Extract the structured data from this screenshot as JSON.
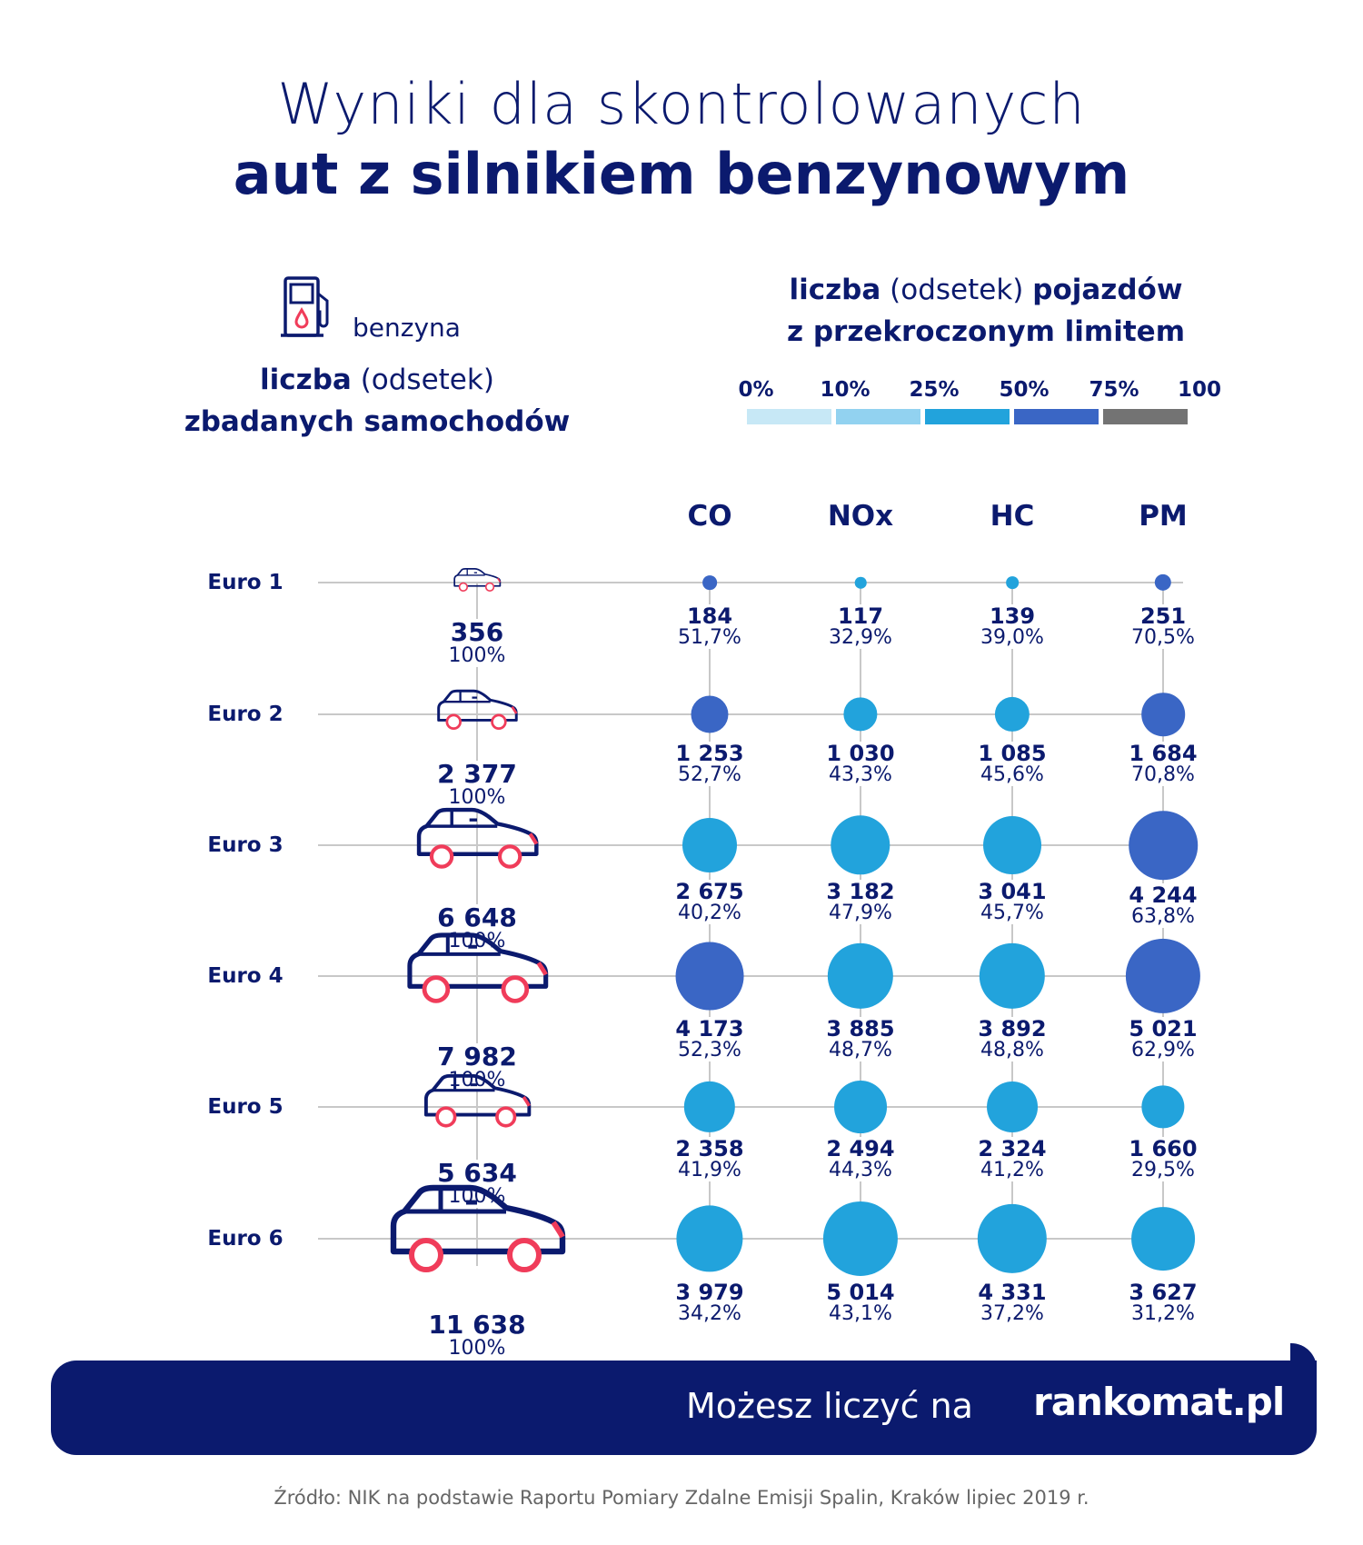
{
  "title": {
    "line1": "Wyniki dla skontrolowanych",
    "line2": "aut z silnikiem benzynowym"
  },
  "fuel": {
    "icon": "fuel-pump-icon",
    "label": "benzyna"
  },
  "left_header": {
    "bold1": "liczba",
    "light": "(odsetek)",
    "bold2": "zbadanych samochodów"
  },
  "right_header": {
    "bold1": "liczba",
    "light": "(odsetek)",
    "bold2": "pojazdów",
    "line2": "z przekroczonym limitem"
  },
  "legend": {
    "labels": [
      "0%",
      "10%",
      "25%",
      "50%",
      "75%",
      "100"
    ],
    "colors": [
      "#c7e8f6",
      "#92d2f0",
      "#22a3dc",
      "#3a66c5",
      "#737373"
    ],
    "thresholds": [
      0,
      10,
      25,
      50,
      75,
      100
    ]
  },
  "chart_data": {
    "type": "bubble-table",
    "title": "Wyniki dla skontrolowanych aut z silnikiem benzynowym",
    "columns": [
      "CO",
      "NOx",
      "HC",
      "PM"
    ],
    "rows": [
      {
        "label": "Euro 1",
        "total": "356",
        "total_pct": "100%",
        "cells": [
          {
            "count": "184",
            "pct": "51,7%",
            "value": 51.7,
            "n": 184
          },
          {
            "count": "117",
            "pct": "32,9%",
            "value": 32.9,
            "n": 117
          },
          {
            "count": "139",
            "pct": "39,0%",
            "value": 39.0,
            "n": 139
          },
          {
            "count": "251",
            "pct": "70,5%",
            "value": 70.5,
            "n": 251
          }
        ]
      },
      {
        "label": "Euro 2",
        "total": "2 377",
        "total_pct": "100%",
        "cells": [
          {
            "count": "1 253",
            "pct": "52,7%",
            "value": 52.7,
            "n": 1253
          },
          {
            "count": "1 030",
            "pct": "43,3%",
            "value": 43.3,
            "n": 1030
          },
          {
            "count": "1 085",
            "pct": "45,6%",
            "value": 45.6,
            "n": 1085
          },
          {
            "count": "1 684",
            "pct": "70,8%",
            "value": 70.8,
            "n": 1684
          }
        ]
      },
      {
        "label": "Euro 3",
        "total": "6 648",
        "total_pct": "100%",
        "cells": [
          {
            "count": "2 675",
            "pct": "40,2%",
            "value": 40.2,
            "n": 2675
          },
          {
            "count": "3 182",
            "pct": "47,9%",
            "value": 47.9,
            "n": 3182
          },
          {
            "count": "3 041",
            "pct": "45,7%",
            "value": 45.7,
            "n": 3041
          },
          {
            "count": "4 244",
            "pct": "63,8%",
            "value": 63.8,
            "n": 4244
          }
        ]
      },
      {
        "label": "Euro 4",
        "total": "7 982",
        "total_pct": "100%",
        "cells": [
          {
            "count": "4 173",
            "pct": "52,3%",
            "value": 52.3,
            "n": 4173
          },
          {
            "count": "3 885",
            "pct": "48,7%",
            "value": 48.7,
            "n": 3885
          },
          {
            "count": "3 892",
            "pct": "48,8%",
            "value": 48.8,
            "n": 3892
          },
          {
            "count": "5 021",
            "pct": "62,9%",
            "value": 62.9,
            "n": 5021
          }
        ]
      },
      {
        "label": "Euro 5",
        "total": "5 634",
        "total_pct": "100%",
        "cells": [
          {
            "count": "2 358",
            "pct": "41,9%",
            "value": 41.9,
            "n": 2358
          },
          {
            "count": "2 494",
            "pct": "44,3%",
            "value": 44.3,
            "n": 2494
          },
          {
            "count": "2 324",
            "pct": "41,2%",
            "value": 41.2,
            "n": 2324
          },
          {
            "count": "1 660",
            "pct": "29,5%",
            "value": 29.5,
            "n": 1660
          }
        ]
      },
      {
        "label": "Euro 6",
        "total": "11 638",
        "total_pct": "100%",
        "cells": [
          {
            "count": "3 979",
            "pct": "34,2%",
            "value": 34.2,
            "n": 3979
          },
          {
            "count": "5 014",
            "pct": "43,1%",
            "value": 43.1,
            "n": 5014
          },
          {
            "count": "4 331",
            "pct": "37,2%",
            "value": 37.2,
            "n": 4331
          },
          {
            "count": "3 627",
            "pct": "31,2%",
            "value": 31.2,
            "n": 3627
          }
        ]
      }
    ]
  },
  "footer": {
    "tagline": "Możesz liczyć na",
    "logo": "rankomat.pl"
  },
  "source": "Źródło: NIK na podstawie Raportu Pomiary Zdalne Emisji Spalin, Kraków lipiec 2019 r."
}
